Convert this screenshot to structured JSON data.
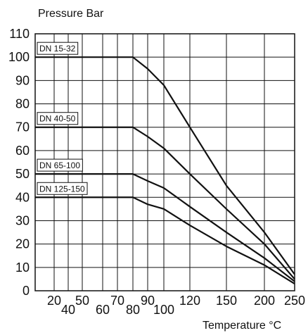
{
  "chart_data": {
    "type": "line",
    "title": "",
    "ylabel": "Pressure Bar",
    "xlabel": "Temperature °C",
    "ylim": [
      0,
      110
    ],
    "grid": true,
    "y_ticks": [
      "0",
      "10",
      "20",
      "30",
      "40",
      "50",
      "60",
      "70",
      "80",
      "90",
      "100",
      "110"
    ],
    "x_ticks": [
      "20",
      "40",
      "50",
      "60",
      "70",
      "80",
      "90",
      "100",
      "120",
      "150",
      "200",
      "250"
    ],
    "series": [
      {
        "name": "DN 15-32",
        "x": [
          "-10",
          "80",
          "90",
          "100",
          "120",
          "150",
          "200",
          "250"
        ],
        "y": [
          100,
          100,
          95,
          88,
          70,
          45,
          25,
          7
        ]
      },
      {
        "name": "DN 40-50",
        "x": [
          "-10",
          "80",
          "90",
          "100",
          "120",
          "150",
          "200",
          "250"
        ],
        "y": [
          70,
          70,
          66,
          61,
          50,
          35,
          20,
          5
        ]
      },
      {
        "name": "DN 65-100",
        "x": [
          "-10",
          "80",
          "90",
          "100",
          "120",
          "150",
          "200",
          "250"
        ],
        "y": [
          50,
          50,
          47,
          44,
          36,
          25,
          14,
          4
        ]
      },
      {
        "name": "DN 125-150",
        "x": [
          "-10",
          "80",
          "90",
          "100",
          "120",
          "150",
          "200",
          "250"
        ],
        "y": [
          40,
          40,
          37,
          35,
          28,
          19,
          11,
          3
        ]
      }
    ],
    "colors": {
      "line": "#111111",
      "grid": "#111111",
      "background": "#ffffff"
    }
  }
}
